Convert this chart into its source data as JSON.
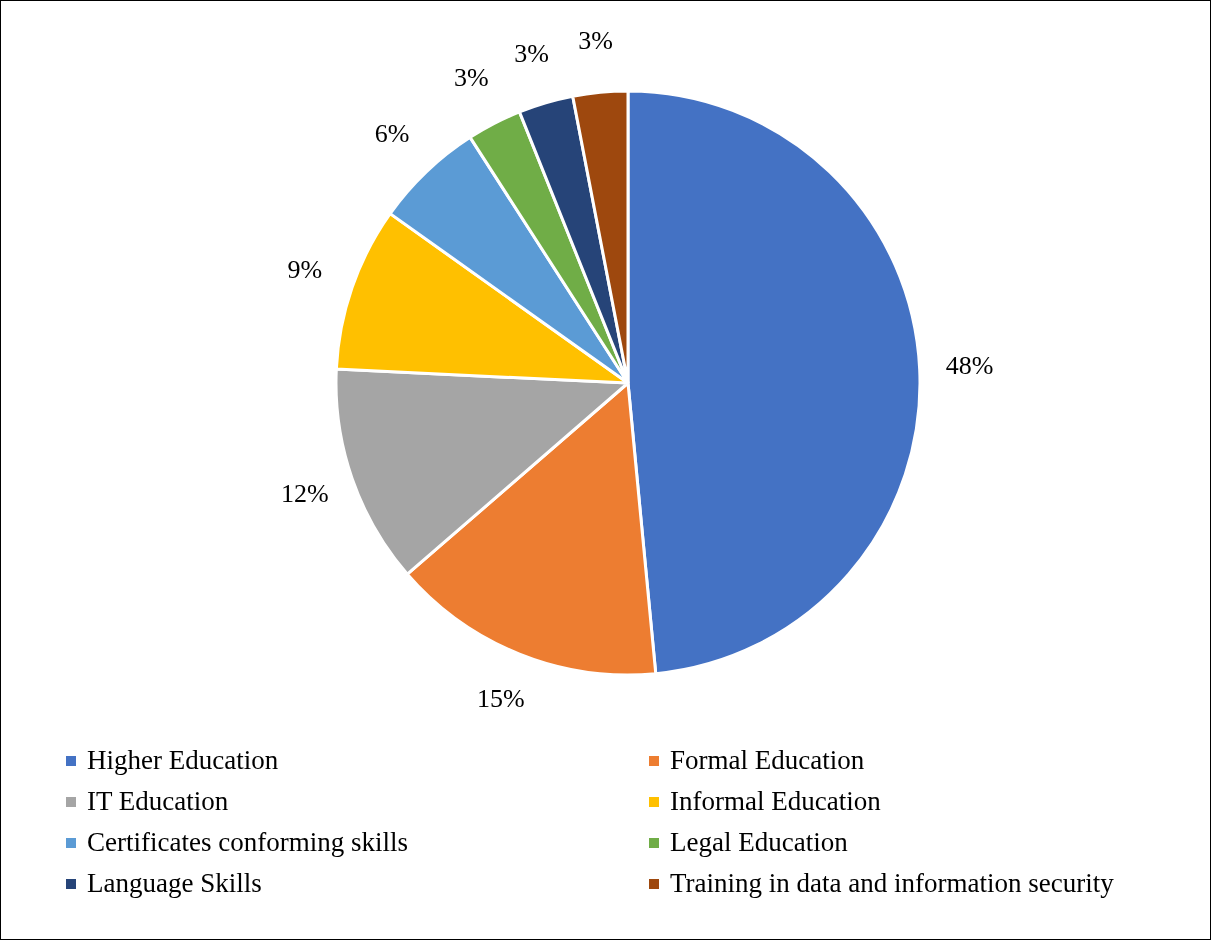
{
  "chart_data": {
    "type": "pie",
    "categories": [
      "Higher Education",
      "Formal Education",
      "IT Education",
      "Informal Education",
      "Certificates conforming skills",
      "Legal Education",
      "Language Skills",
      "Training in data and information security"
    ],
    "values": [
      48,
      15,
      12,
      9,
      6,
      3,
      3,
      3
    ],
    "colors": [
      "#4472c4",
      "#ed7d31",
      "#a5a5a5",
      "#ffc000",
      "#5b9bd5",
      "#70ad47",
      "#264478",
      "#9e480e"
    ],
    "value_labels": [
      "48%",
      "15%",
      "12%",
      "9%",
      "6%",
      "3%",
      "3%",
      "3%"
    ],
    "legend": "bottom"
  }
}
